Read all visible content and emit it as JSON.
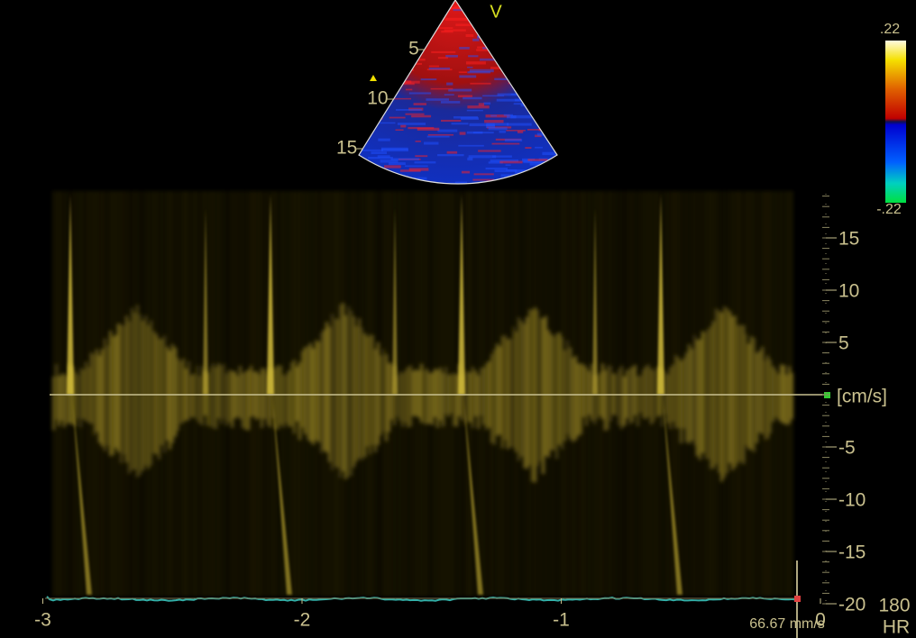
{
  "sector": {
    "mode": "V",
    "depth_labels": [
      5,
      10,
      15
    ]
  },
  "color_scale": {
    "max": ".22",
    "min": "-.22"
  },
  "velocity_axis": {
    "unit": "[cm/s]",
    "ticks": [
      15,
      10,
      5,
      -5,
      -10,
      -15,
      -20
    ]
  },
  "time_axis": {
    "ticks": [
      -3,
      -2,
      -1,
      0
    ]
  },
  "sweep_speed": "66.67 mm/s",
  "heart_rate": {
    "value": "180",
    "label": "HR"
  }
}
